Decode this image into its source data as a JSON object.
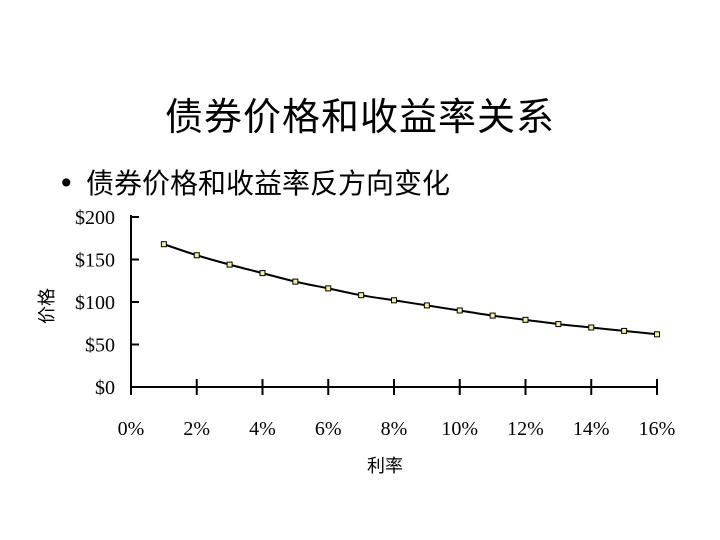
{
  "slide": {
    "title": "债券价格和收益率关系",
    "bullet_marker": "•",
    "bullet_text": "债券价格和收益率反方向变化"
  },
  "chart_data": {
    "type": "line",
    "title": "",
    "xlabel": "利率",
    "ylabel": "价格",
    "x_tick_labels": [
      "0%",
      "2%",
      "4%",
      "6%",
      "8%",
      "10%",
      "12%",
      "14%",
      "16%"
    ],
    "y_tick_labels": [
      "$0",
      "$50",
      "$100",
      "$150",
      "$200"
    ],
    "xlim": [
      0,
      16
    ],
    "ylim": [
      0,
      200
    ],
    "grid": false,
    "series": [
      {
        "x": [
          1,
          2,
          3,
          4,
          5,
          6,
          7,
          8,
          9,
          10,
          11,
          12,
          13,
          14,
          15,
          16
        ],
        "values": [
          168,
          155,
          144,
          134,
          124,
          116,
          108,
          102,
          96,
          90,
          84,
          79,
          74,
          70,
          66,
          62
        ],
        "line_color": "#000000",
        "marker_color": "#f5f0a0"
      }
    ]
  }
}
